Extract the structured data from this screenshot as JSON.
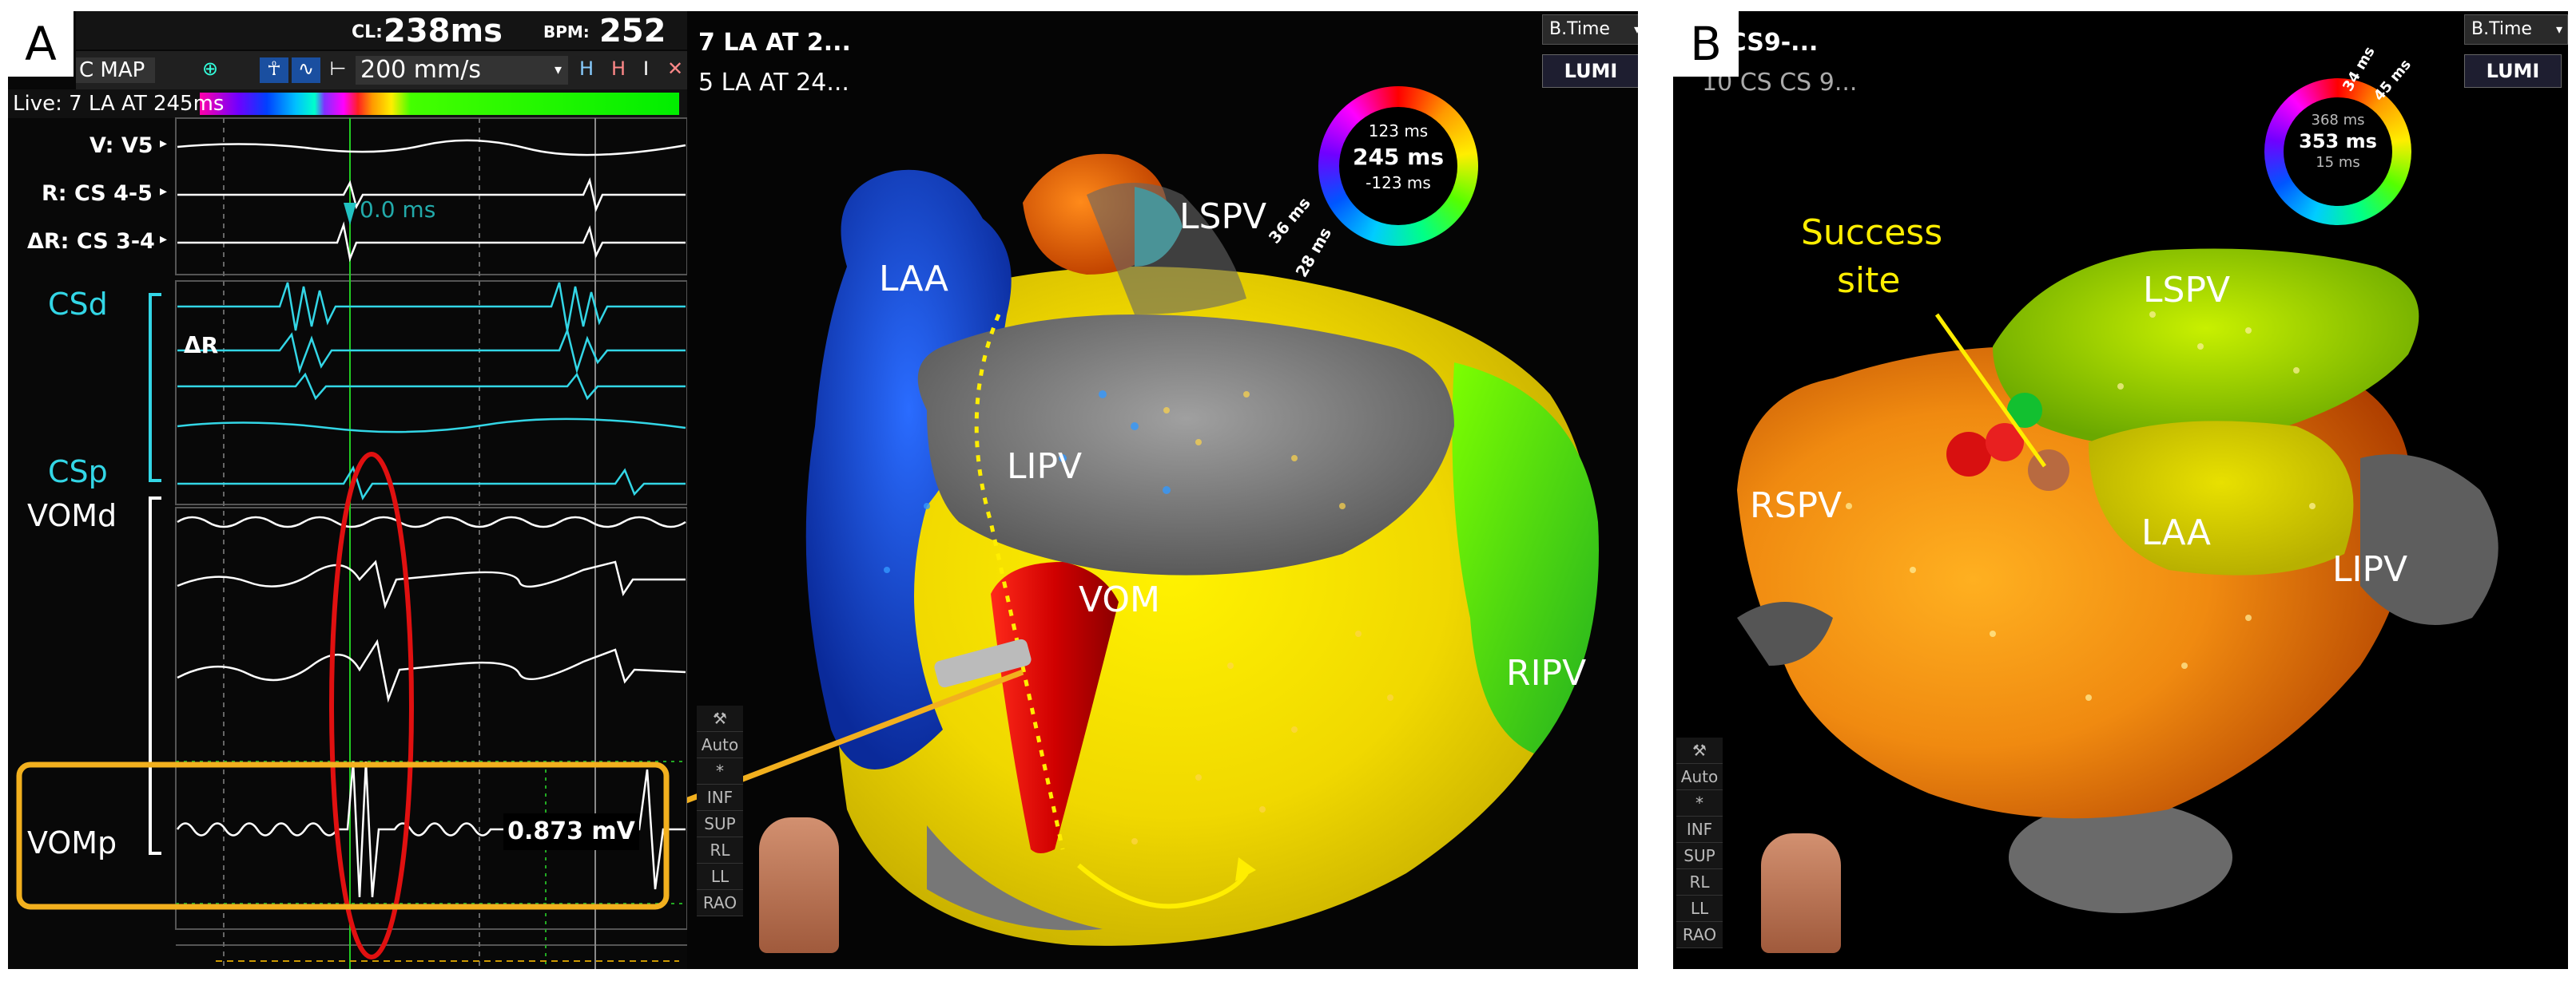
{
  "panel_a": {
    "letter": "A",
    "header": {
      "cl_label": "CL:",
      "cl_value": "238ms",
      "bpm_label": "BPM:",
      "bpm_value": "252"
    },
    "toolbar": {
      "map_select": "C MAP",
      "sweep_speed": "200 mm/s"
    },
    "live_label": "Live: 7 LA AT 245ms",
    "channels": [
      "V: V5",
      "R: CS 4-5",
      "ΔR: CS 3-4"
    ],
    "measurement": "0.0 ms",
    "delta_r": "ΔR",
    "group_labels": {
      "csd": "CSd",
      "csp": "CSp",
      "vomd": "VOMd",
      "vomp": "VOMp"
    },
    "amplitude": "0.873 mV",
    "map_titles": [
      "7 LA AT 2...",
      "5 LA AT 24..."
    ],
    "view_select": "B.Time",
    "lumi_label": "LUMI",
    "side_buttons": [
      "Auto",
      "*",
      "INF",
      "SUP",
      "RL",
      "LL",
      "RAO"
    ],
    "ring": {
      "top": "123 ms",
      "center": "245 ms",
      "bottom": "-123 ms",
      "mark1": "36 ms",
      "mark2": "28 ms"
    },
    "anatomy": {
      "laa": "LAA",
      "lspv": "LSPV",
      "lipv": "LIPV",
      "vom": "VOM",
      "ripv": "RIPV"
    },
    "colors": {
      "cyan": "#33d6e6",
      "yellow_box": "#f2b01e",
      "red_ellipse": "#e01010"
    }
  },
  "panel_b": {
    "letter": "B",
    "map_titles": [
      "A CS9-...",
      "10 CS CS 9..."
    ],
    "view_select": "B.Time",
    "lumi_label": "LUMI",
    "ring": {
      "top": "368 ms",
      "center": "353 ms",
      "bottom": "15 ms",
      "mark1": "34 ms",
      "mark2": "45 ms"
    },
    "success_label_1": "Success",
    "success_label_2": "site",
    "anatomy": {
      "lspv": "LSPV",
      "rspv": "RSPV",
      "laa": "LAA",
      "lipv": "LIPV"
    },
    "side_buttons": [
      "Auto",
      "*",
      "INF",
      "SUP",
      "RL",
      "LL",
      "RAO"
    ]
  }
}
